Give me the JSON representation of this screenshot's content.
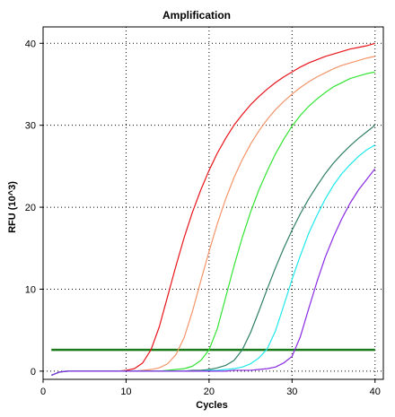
{
  "chart_data": {
    "type": "line",
    "title": "Amplification",
    "xlabel": "Cycles",
    "ylabel": "RFU (10^3)",
    "xlim": [
      0,
      41
    ],
    "ylim": [
      -1,
      42
    ],
    "x_ticks": [
      0,
      10,
      20,
      30,
      40
    ],
    "y_ticks": [
      0,
      10,
      20,
      30,
      40
    ],
    "grid": true,
    "threshold": {
      "value": 2.6,
      "color": "#1a7a1a"
    },
    "x": [
      1,
      2,
      3,
      4,
      5,
      6,
      7,
      8,
      9,
      10,
      11,
      12,
      13,
      14,
      15,
      16,
      17,
      18,
      19,
      20,
      21,
      22,
      23,
      24,
      25,
      26,
      27,
      28,
      29,
      30,
      31,
      32,
      33,
      34,
      35,
      36,
      37,
      38,
      39,
      40
    ],
    "series": [
      {
        "color": "#e8141a",
        "values": [
          -0.5,
          -0.1,
          0,
          0,
          0,
          0,
          0,
          0,
          0,
          0.1,
          0.3,
          1.0,
          2.6,
          5.4,
          9.1,
          12.8,
          16.3,
          19.4,
          22.1,
          24.5,
          26.6,
          28.4,
          30.0,
          31.3,
          32.5,
          33.5,
          34.4,
          35.2,
          35.9,
          36.5,
          37.1,
          37.6,
          38.0,
          38.4,
          38.7,
          39.0,
          39.3,
          39.5,
          39.7,
          40.0
        ]
      },
      {
        "color": "#f4956a",
        "values": [
          -0.5,
          -0.1,
          0,
          0,
          0,
          0,
          0,
          0,
          0,
          0,
          0,
          0.1,
          0.2,
          0.4,
          0.9,
          2.0,
          4.1,
          7.3,
          11.0,
          14.6,
          18.0,
          21.0,
          23.6,
          25.8,
          27.7,
          29.3,
          30.7,
          31.9,
          32.9,
          33.8,
          34.6,
          35.3,
          35.9,
          36.4,
          36.9,
          37.3,
          37.6,
          37.9,
          38.2,
          38.4
        ]
      },
      {
        "color": "#33e333",
        "values": [
          -0.5,
          -0.1,
          0,
          0,
          0,
          0,
          0,
          0,
          0,
          0,
          0,
          0,
          0,
          0,
          0.1,
          0.2,
          0.3,
          0.6,
          1.3,
          2.6,
          5.2,
          9.0,
          12.8,
          16.3,
          19.4,
          22.1,
          24.4,
          26.5,
          28.3,
          29.9,
          31.2,
          32.3,
          33.2,
          34.0,
          34.7,
          35.2,
          35.7,
          36.0,
          36.3,
          36.5
        ]
      },
      {
        "color": "#2f7f62",
        "values": [
          -0.5,
          -0.1,
          0,
          0,
          0,
          0,
          0,
          0,
          0,
          0,
          0,
          0,
          0,
          0,
          0,
          0,
          0,
          0.1,
          0.1,
          0.2,
          0.4,
          0.7,
          1.3,
          2.6,
          4.7,
          7.3,
          10.0,
          12.6,
          15.0,
          17.2,
          19.2,
          21.0,
          22.6,
          24.1,
          25.4,
          26.5,
          27.5,
          28.4,
          29.2,
          30.0
        ]
      },
      {
        "color": "#1fe8ec",
        "values": [
          -0.5,
          -0.1,
          0,
          0,
          0,
          0,
          0,
          0,
          0,
          0,
          0,
          0,
          0,
          0,
          0,
          0,
          0,
          0,
          0,
          0.1,
          0.1,
          0.2,
          0.3,
          0.5,
          0.9,
          1.6,
          2.7,
          4.9,
          8.0,
          11.2,
          14.1,
          16.8,
          19.0,
          21.0,
          22.7,
          24.1,
          25.2,
          26.2,
          27.0,
          27.6
        ]
      },
      {
        "color": "#8a2be2",
        "values": [
          -0.5,
          -0.1,
          0,
          0,
          0,
          0,
          0,
          0,
          0,
          0,
          0,
          0,
          0,
          0,
          0,
          0,
          0,
          0,
          0,
          0,
          0,
          0,
          0.1,
          0.1,
          0.1,
          0.2,
          0.3,
          0.5,
          1.0,
          1.8,
          4.2,
          7.6,
          10.9,
          13.9,
          16.4,
          18.6,
          20.5,
          22.1,
          23.4,
          24.7
        ]
      }
    ]
  }
}
